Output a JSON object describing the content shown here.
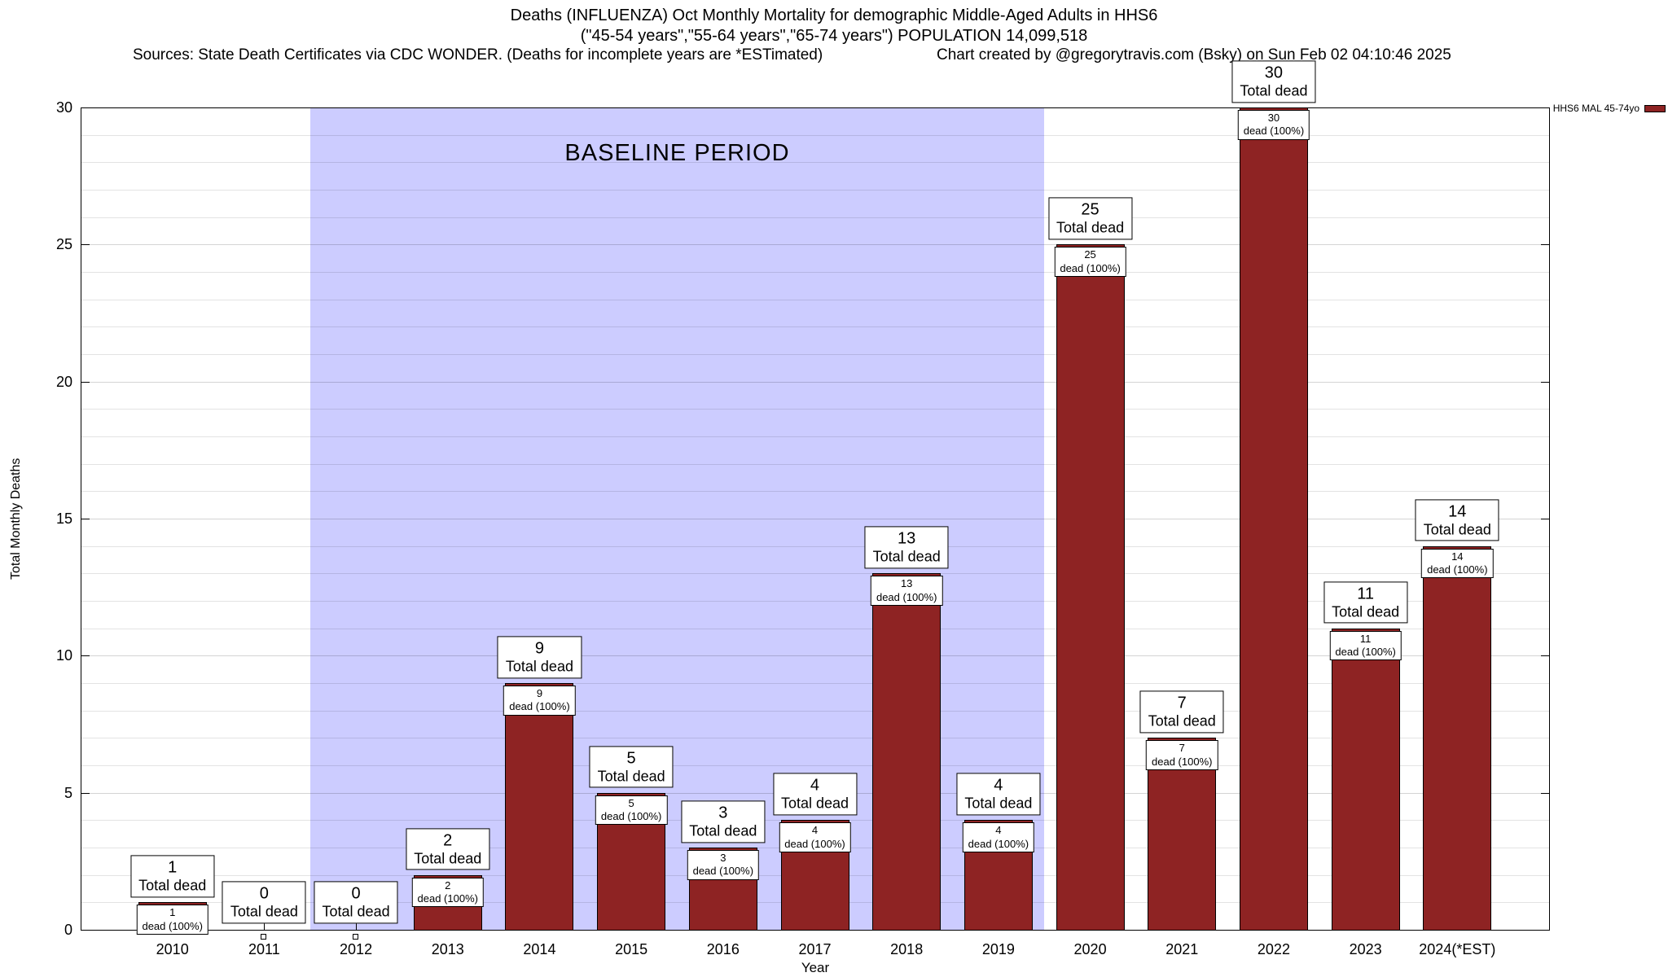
{
  "header": {
    "title_line1": "Deaths (INFLUENZA) Oct Monthly Mortality for demographic Middle-Aged Adults in HHS6",
    "title_line2": "(\"45-54 years\",\"55-64 years\",\"65-74 years\") POPULATION 14,099,518",
    "sources": "Sources: State Death Certificates via CDC WONDER. (Deaths for incomplete years are *ESTimated)",
    "credit": "Chart created by @gregorytravis.com (Bsky) on Sun Feb 02 04:10:46 2025"
  },
  "legend": {
    "label": "HHS6 MAL 45-74yo",
    "swatch_color": "#8e2323"
  },
  "chart_data": {
    "type": "bar",
    "title": "Deaths (INFLUENZA) Oct Monthly Mortality for demographic Middle-Aged Adults in HHS6",
    "subtitle": "(\"45-54 years\",\"55-64 years\",\"65-74 years\") POPULATION 14,099,518",
    "xlabel": "Year",
    "ylabel": "Total Monthly Deaths",
    "ylim": [
      0,
      30
    ],
    "yticks": [
      0,
      5,
      10,
      15,
      20,
      25,
      30
    ],
    "grid_interval": 1,
    "legend_position": "top-right-outside",
    "categories": [
      "2010",
      "2011",
      "2012",
      "2013",
      "2014",
      "2015",
      "2016",
      "2017",
      "2018",
      "2019",
      "2020",
      "2021",
      "2022",
      "2023",
      "2024(*EST)"
    ],
    "values": [
      1,
      0,
      0,
      2,
      9,
      5,
      3,
      4,
      13,
      4,
      25,
      7,
      30,
      11,
      14
    ],
    "bar_color": "#8e2323",
    "bar_top_label_suffix": "Total dead",
    "bar_inner_label_suffix": "dead (100%)",
    "baseline_region": {
      "label": "BASELINE PERIOD",
      "from_category": "2012",
      "to_category": "2019",
      "color": "#ccccff"
    }
  }
}
